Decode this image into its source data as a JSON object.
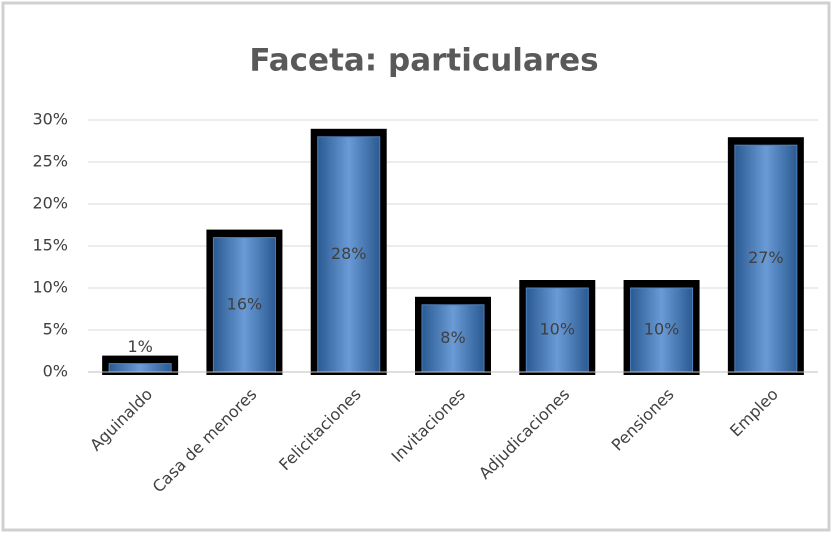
{
  "chart_data": {
    "type": "bar",
    "title": "Faceta: particulares",
    "categories": [
      "Aguinaldo",
      "Casa de menores",
      "Felicitaciones",
      "Invitaciones",
      "Adjudicaciones",
      "Pensiones",
      "Empleo"
    ],
    "values": [
      1,
      16,
      28,
      8,
      10,
      10,
      27
    ],
    "value_labels": [
      "1%",
      "16%",
      "28%",
      "8%",
      "10%",
      "10%",
      "27%"
    ],
    "color": "#4f81bd",
    "ylim": [
      0,
      30
    ],
    "yticks": [
      {
        "value": 0,
        "label": "0%"
      },
      {
        "value": 5,
        "label": "5%"
      },
      {
        "value": 10,
        "label": "10%"
      },
      {
        "value": 15,
        "label": "15%"
      },
      {
        "value": 20,
        "label": "20%"
      },
      {
        "value": 25,
        "label": "25%"
      },
      {
        "value": 30,
        "label": "30%"
      }
    ],
    "grid": true
  }
}
